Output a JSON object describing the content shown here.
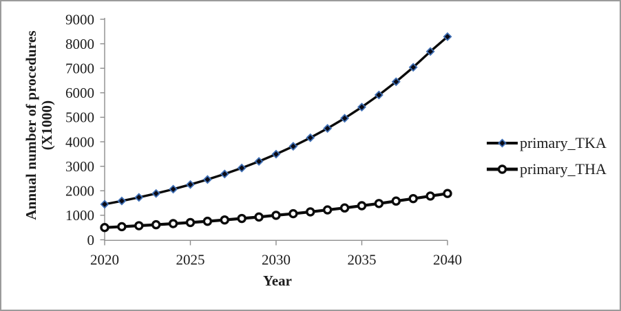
{
  "window": {
    "background": "#ffffff",
    "border_color": "#9b9b9b"
  },
  "chart_data": {
    "type": "line",
    "title": "",
    "xlabel": "Year",
    "ylabel": "Annual number of procedures (X1000)",
    "ylabel_line1": "Annual number of procedures",
    "ylabel_line2": "(X1000)",
    "x": [
      2020,
      2021,
      2022,
      2023,
      2024,
      2025,
      2026,
      2027,
      2028,
      2029,
      2030,
      2031,
      2032,
      2033,
      2034,
      2035,
      2036,
      2037,
      2038,
      2039,
      2040
    ],
    "xticks": [
      2020,
      2025,
      2030,
      2035,
      2040
    ],
    "yticks": [
      0,
      1000,
      2000,
      3000,
      4000,
      5000,
      6000,
      7000,
      8000,
      9000
    ],
    "xlim": [
      2020,
      2040
    ],
    "ylim": [
      0,
      9000
    ],
    "grid": false,
    "legend_position": "right-outside",
    "axis_color": "#8c8c8c",
    "text_color": "#1c1c1c",
    "series": [
      {
        "name": "primary_TKA",
        "marker": "diamond",
        "line_color": "#0b0b0b",
        "line_width": 3.4,
        "marker_fill": "#0a0a14",
        "marker_border": "#3f6fb5",
        "values": [
          1450,
          1585,
          1730,
          1890,
          2065,
          2255,
          2460,
          2685,
          2930,
          3200,
          3495,
          3815,
          4165,
          4545,
          4960,
          5415,
          5910,
          6450,
          7040,
          7685,
          8290
        ]
      },
      {
        "name": "primary_THA",
        "marker": "circle",
        "line_color": "#0b0b0b",
        "line_width": 4.2,
        "marker_fill": "#ffffff",
        "marker_border": "#0b0b0b",
        "values": [
          500,
          535,
          575,
          615,
          660,
          705,
          755,
          810,
          870,
          930,
          1000,
          1065,
          1140,
          1220,
          1300,
          1390,
          1480,
          1580,
          1680,
          1785,
          1890
        ]
      }
    ]
  }
}
